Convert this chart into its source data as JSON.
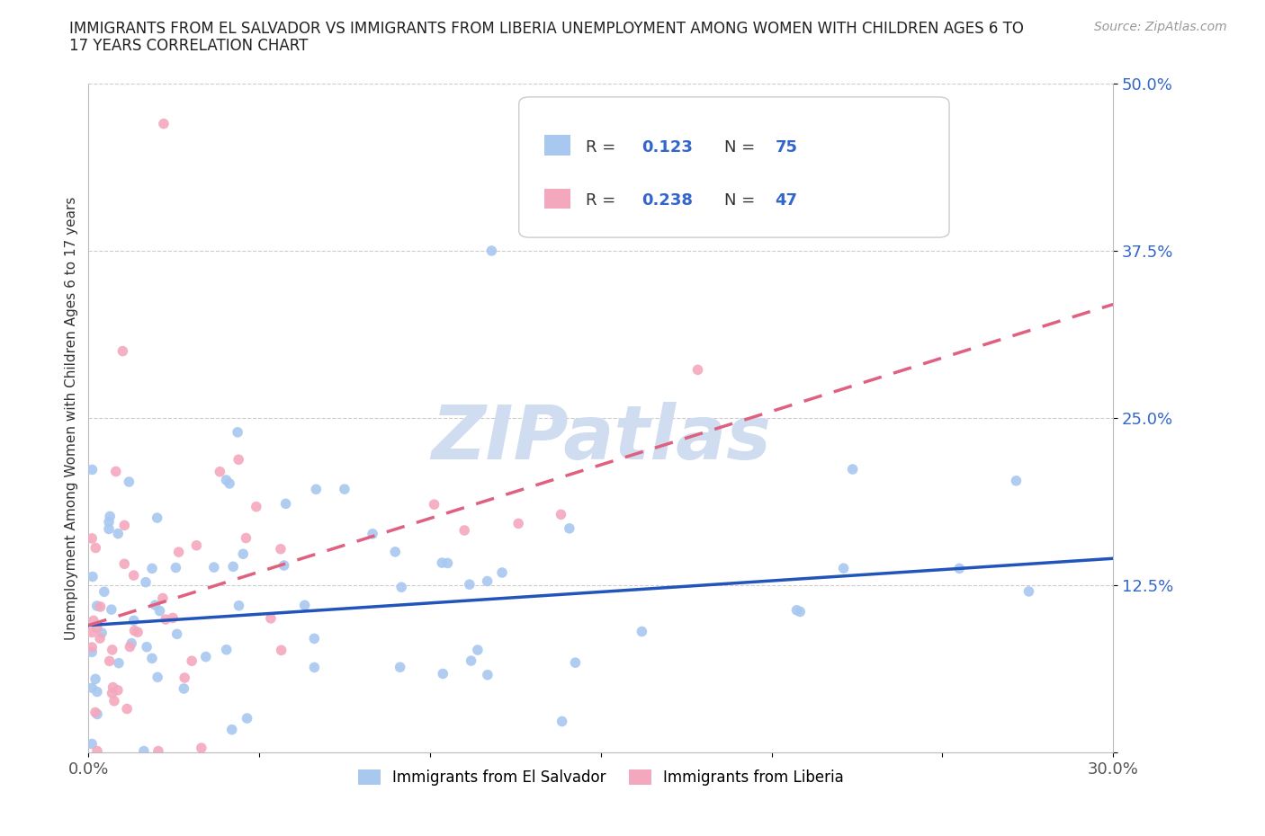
{
  "title_line1": "IMMIGRANTS FROM EL SALVADOR VS IMMIGRANTS FROM LIBERIA UNEMPLOYMENT AMONG WOMEN WITH CHILDREN AGES 6 TO",
  "title_line2": "17 YEARS CORRELATION CHART",
  "source": "Source: ZipAtlas.com",
  "ylabel": "Unemployment Among Women with Children Ages 6 to 17 years",
  "xlim": [
    0.0,
    0.3
  ],
  "ylim": [
    0.0,
    0.5
  ],
  "legend_label_1": "Immigrants from El Salvador",
  "legend_label_2": "Immigrants from Liberia",
  "R1": 0.123,
  "N1": 75,
  "R2": 0.238,
  "N2": 47,
  "color1": "#A8C8F0",
  "color2": "#F4A8BE",
  "trendline1_color": "#2255BB",
  "trendline2_color": "#E06080",
  "watermark": "ZIPatlas",
  "watermark_color": "#D0DCF0",
  "trendline1_x0": 0.0,
  "trendline1_y0": 0.095,
  "trendline1_x1": 0.3,
  "trendline1_y1": 0.145,
  "trendline2_x0": 0.0,
  "trendline2_y0": 0.095,
  "trendline2_x1": 0.3,
  "trendline2_y1": 0.335,
  "seed": 99
}
